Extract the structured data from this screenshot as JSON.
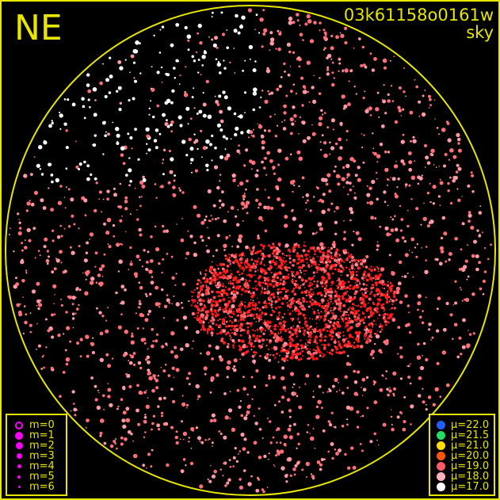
{
  "header": {
    "direction": "NE",
    "frame_id": "03k61158o0161w",
    "frame_type": "sky"
  },
  "colors": {
    "frame": "#e6e600",
    "background": "#000000",
    "magnitude_symbol": "#ff00ff"
  },
  "magnitude_legend": [
    {
      "label": "m=0",
      "style": "ring",
      "size": 10
    },
    {
      "label": "m=1",
      "style": "filled",
      "size": 10
    },
    {
      "label": "m=2",
      "style": "filled",
      "size": 9
    },
    {
      "label": "m=3",
      "style": "filled",
      "size": 7
    },
    {
      "label": "m=4",
      "style": "filled",
      "size": 5
    },
    {
      "label": "m=5",
      "style": "filled",
      "size": 4
    },
    {
      "label": "m=6",
      "style": "filled",
      "size": 3
    }
  ],
  "brightness_legend": [
    {
      "label": "μ=22.0",
      "color": "#1f5fff"
    },
    {
      "label": "μ=21.5",
      "color": "#22dd66"
    },
    {
      "label": "μ=21.0",
      "color": "#ffdd00"
    },
    {
      "label": "μ=20.0",
      "color": "#ff5511"
    },
    {
      "label": "μ=19.0",
      "color": "#ff5a66"
    },
    {
      "label": "μ=18.0",
      "color": "#ffb0c0"
    },
    {
      "label": "μ=17.0",
      "color": "#ffffff"
    }
  ]
}
